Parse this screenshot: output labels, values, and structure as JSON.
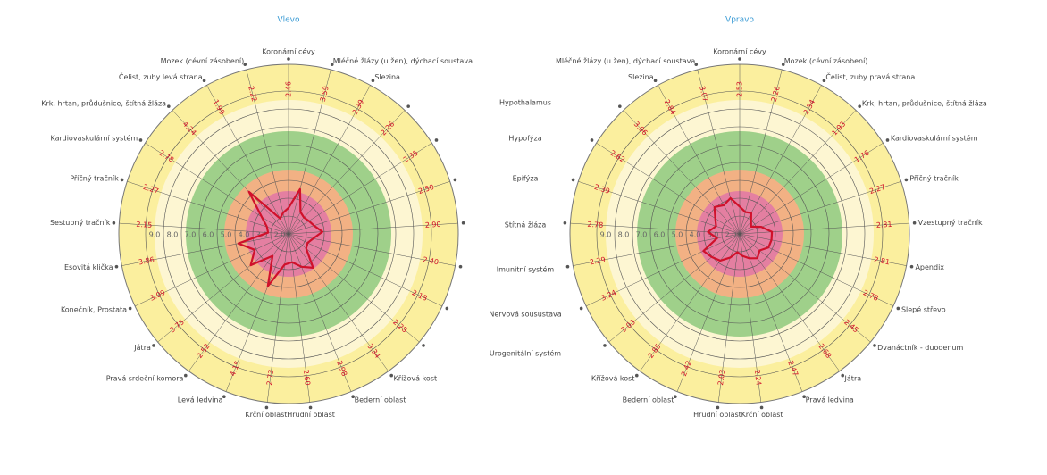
{
  "middle_labels": [
    "Hypothalamus",
    "Hypofýza",
    "Epifýza",
    "Štítná žláza",
    "Imunitní systém",
    "Nervová sousustava",
    "Urogenitální systém"
  ],
  "chart_data": [
    {
      "type": "radar",
      "title": "Vlevo",
      "color": "#d0112b",
      "categories": [
        "Koronární cévy",
        "Mléčné žlázy (u žen), dýchací soustava",
        "Slezina",
        null,
        null,
        null,
        null,
        null,
        null,
        null,
        "Křížová kost",
        "Bederní oblast",
        "Hrudní oblast",
        "Krční oblast",
        "Levá ledvina",
        "Pravá srdeční komora",
        "Játra",
        "Konečník, Prostata",
        "Esovitá klička",
        "Sestupný tračník",
        "Příčný tračník",
        "Kardiovaskulární systém",
        "Krk, hrtan, průdušnice, štítná žláza",
        "Čelist, zuby levá strana",
        "Mozek (cévní zásobení)"
      ],
      "values": [
        2.46,
        3.59,
        2.39,
        2.26,
        2.35,
        2.5,
        2.9,
        2.4,
        2.18,
        2.28,
        3.34,
        2.98,
        2.6,
        2.73,
        4.15,
        2.52,
        3.75,
        3.09,
        3.86,
        2.15,
        2.27,
        2.78,
        4.24,
        1.99,
        2.22
      ],
      "value_labels": [
        "2.46",
        "3.59",
        "2.39",
        "2.26",
        "2.35",
        "2.50",
        "2.90",
        "2.40",
        "2.18",
        "2.28",
        "3.34",
        "2.98",
        "2.60",
        "2.73",
        "4.15",
        "2.52",
        "3.75",
        "3.09",
        "3.86",
        "2.15",
        "2.27",
        "2.78",
        "4.24",
        "1.99",
        "2.22"
      ],
      "rlim": [
        1,
        10.5
      ],
      "rticks": [
        {
          "value": 9,
          "label": "9.0"
        },
        {
          "value": 8,
          "label": "8.0"
        },
        {
          "value": 7,
          "label": "7.0"
        },
        {
          "value": 6,
          "label": "6.0"
        },
        {
          "value": 5,
          "label": "5.0"
        },
        {
          "value": 4,
          "label": "4.0"
        },
        {
          "value": 3,
          "label": "3.0"
        },
        {
          "value": 2,
          "label": "2.0"
        }
      ]
    },
    {
      "type": "radar",
      "title": "Vpravo",
      "color": "#d0112b",
      "categories": [
        "Koronární cévy",
        "Mozek (cévní zásobení)",
        "Čelist, zuby pravá strana",
        "Krk, hrtan, průdušnice, štítná žláza",
        "Kardiovaskulární systém",
        "Příčný tračník",
        "Vzestupný tračník",
        "Apendix",
        "Slepé střevo",
        "Dvanáctník - duodenum",
        "Játra",
        "Pravá ledvina",
        "Krční oblast",
        "Hrudní oblast",
        "Bederní oblast",
        "Křížová kost",
        null,
        null,
        null,
        null,
        null,
        null,
        null,
        "Slezina",
        "Mléčné žlázy (u žen), dýchací soustava"
      ],
      "values": [
        2.53,
        2.26,
        2.34,
        1.93,
        1.76,
        2.27,
        2.81,
        2.81,
        2.78,
        2.45,
        2.68,
        2.47,
        2.24,
        2.03,
        2.42,
        2.85,
        3.03,
        3.24,
        2.29,
        2.78,
        2.39,
        2.62,
        3.06,
        2.84,
        3.07
      ],
      "value_labels": [
        "2.53",
        "2.26",
        "2.34",
        "1.93",
        "1.76",
        "2.27",
        "2.81",
        "2.81",
        "2.78",
        "2.45",
        "2.68",
        "2.47",
        "2.24",
        "2.03",
        "2.42",
        "2.85",
        "3.03",
        "3.24",
        "2.29",
        "2.78",
        "2.39",
        "2.62",
        "3.06",
        "2.84",
        "3.07"
      ],
      "rlim": [
        1,
        10.5
      ],
      "rticks": [
        {
          "value": 9,
          "label": "9.0"
        },
        {
          "value": 8,
          "label": "8.0"
        },
        {
          "value": 7,
          "label": "7.0"
        },
        {
          "value": 6,
          "label": "6.0"
        },
        {
          "value": 5,
          "label": "5.0"
        },
        {
          "value": 4,
          "label": "4.0"
        },
        {
          "value": 3,
          "label": "3.0"
        },
        {
          "value": 2,
          "label": "2.0"
        }
      ]
    }
  ]
}
